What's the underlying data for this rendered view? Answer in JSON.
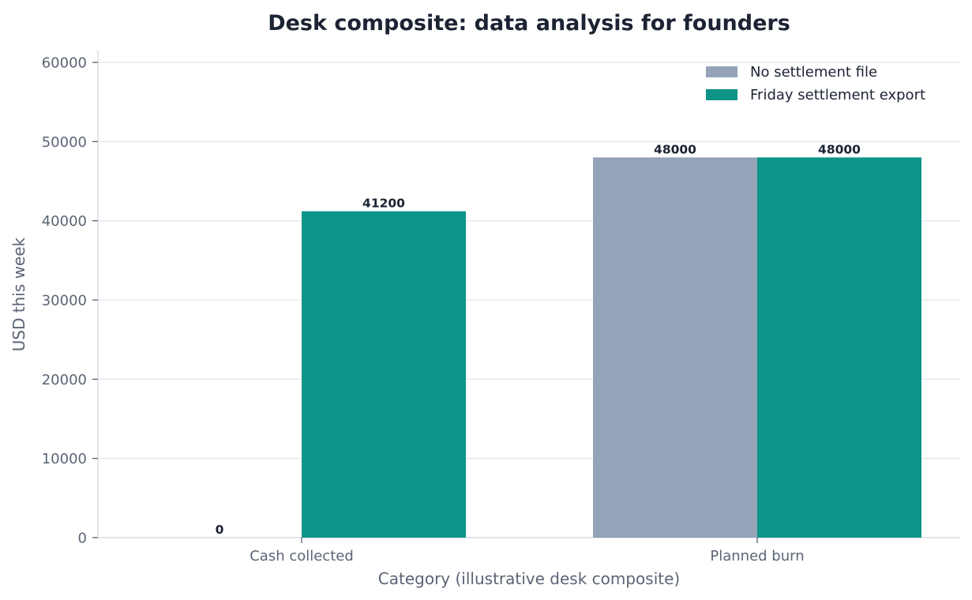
{
  "chart_data": {
    "type": "bar",
    "title": "Desk composite: data analysis for founders",
    "xlabel": "Category (illustrative desk composite)",
    "ylabel": "USD this week",
    "categories": [
      "Cash collected",
      "Planned burn"
    ],
    "series": [
      {
        "name": "No settlement file",
        "values": [
          0,
          48000
        ],
        "color": "#94a3b8"
      },
      {
        "name": "Friday settlement export",
        "values": [
          41200,
          48000
        ],
        "color": "#0d9488"
      }
    ],
    "ylim": [
      0,
      60000
    ],
    "yticks": [
      0,
      10000,
      20000,
      30000,
      40000,
      50000,
      60000
    ],
    "grid": true,
    "legend_position": "top-right"
  }
}
